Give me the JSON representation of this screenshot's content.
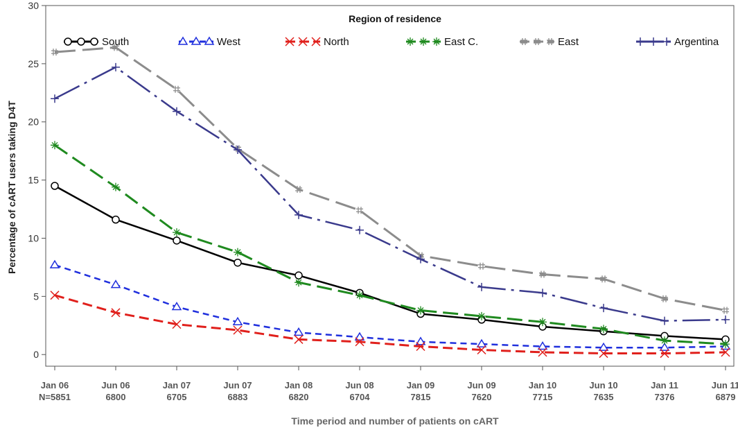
{
  "chart_data": {
    "type": "line",
    "title": "",
    "xlabel": "Time period and number of patients on cART",
    "ylabel": "Percentage of cART users taking D4T",
    "ylim": [
      -1,
      30
    ],
    "yticks": [
      0,
      5,
      10,
      15,
      20,
      25,
      30
    ],
    "grid": false,
    "legend": {
      "title": "Region of residence",
      "placement": "top"
    },
    "categories": [
      [
        "Jan 06",
        "N=5851"
      ],
      [
        "Jun 06",
        "6800"
      ],
      [
        "Jan 07",
        "6705"
      ],
      [
        "Jun 07",
        "6883"
      ],
      [
        "Jan 08",
        "6820"
      ],
      [
        "Jun 08",
        "6704"
      ],
      [
        "Jan 09",
        "7815"
      ],
      [
        "Jun 09",
        "7620"
      ],
      [
        "Jan 10",
        "7715"
      ],
      [
        "Jun 10",
        "7635"
      ],
      [
        "Jan 11",
        "7376"
      ],
      [
        "Jun 11",
        "6879"
      ]
    ],
    "series": [
      {
        "name": "South",
        "color": "#000000",
        "dash": "solid",
        "marker": "circle",
        "values": [
          14.5,
          11.6,
          9.8,
          7.9,
          6.8,
          5.3,
          3.5,
          3.0,
          2.4,
          2.0,
          1.6,
          1.3
        ]
      },
      {
        "name": "West",
        "color": "#1f2fdd",
        "dash": "short",
        "marker": "triangle",
        "values": [
          7.7,
          6.0,
          4.1,
          2.8,
          1.9,
          1.5,
          1.1,
          0.9,
          0.7,
          0.6,
          0.6,
          0.7
        ]
      },
      {
        "name": "North",
        "color": "#e0201c",
        "dash": "medium",
        "marker": "x",
        "values": [
          5.1,
          3.6,
          2.6,
          2.1,
          1.3,
          1.1,
          0.7,
          0.4,
          0.2,
          0.1,
          0.1,
          0.2
        ]
      },
      {
        "name": "East C.",
        "color": "#1f8a1f",
        "dash": "long",
        "marker": "star",
        "values": [
          18.0,
          14.4,
          10.5,
          8.8,
          6.2,
          5.1,
          3.8,
          3.3,
          2.8,
          2.2,
          1.2,
          0.9
        ]
      },
      {
        "name": "East",
        "color": "#8c8c8c",
        "dash": "longer",
        "marker": "hash",
        "values": [
          26.0,
          26.4,
          22.8,
          17.7,
          14.2,
          12.4,
          8.5,
          7.6,
          6.9,
          6.5,
          4.8,
          3.8
        ]
      },
      {
        "name": "Argentina",
        "color": "#3a3a8c",
        "dash": "dashdot",
        "marker": "plus",
        "values": [
          22.0,
          24.7,
          20.9,
          17.6,
          12.0,
          10.7,
          8.2,
          5.8,
          5.3,
          4.0,
          2.9,
          3.0
        ]
      }
    ]
  }
}
